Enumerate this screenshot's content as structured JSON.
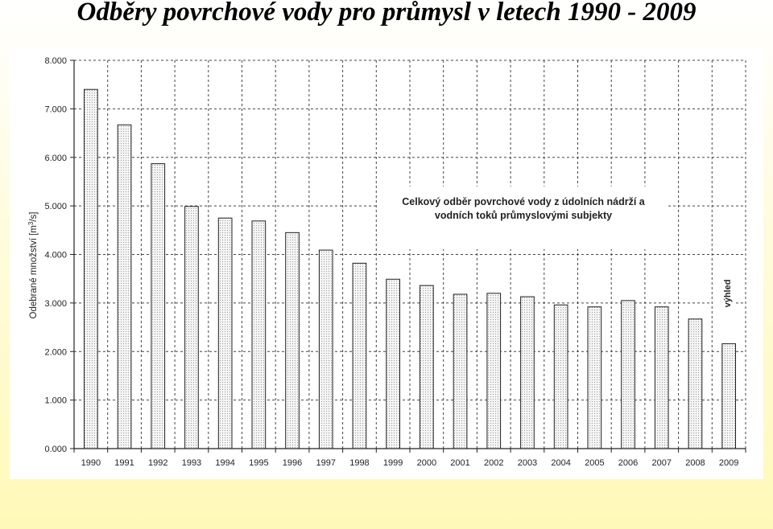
{
  "page": {
    "title": "Odběry povrchové vody pro průmysl v letech 1990 - 2009"
  },
  "colors": {
    "background_top": "#ffffff",
    "background_bottom": "#fff9b8",
    "bar_fill": "#eaeaea",
    "bar_stroke": "#222222",
    "grid": "#444444"
  },
  "chart_data": {
    "type": "bar",
    "title": "",
    "annotation_lines": [
      "Celkový odběr povrchové vody z údolních nádrží a",
      "vodních toků průmyslovými subjekty"
    ],
    "forecast_label": "výhled",
    "xlabel": "",
    "ylabel_prefix": "Odebrané množství [m",
    "ylabel_sup": "3",
    "ylabel_suffix": "/s]",
    "ylim": [
      0,
      8000
    ],
    "yticks": [
      0,
      1000,
      2000,
      3000,
      4000,
      5000,
      6000,
      7000,
      8000
    ],
    "ytick_labels": [
      "0.000",
      "1.000",
      "2.000",
      "3.000",
      "4.000",
      "5.000",
      "6.000",
      "7.000",
      "8.000"
    ],
    "categories": [
      "1990",
      "1991",
      "1992",
      "1993",
      "1994",
      "1995",
      "1996",
      "1997",
      "1998",
      "1999",
      "2000",
      "2001",
      "2002",
      "2003",
      "2004",
      "2005",
      "2006",
      "2007",
      "2008",
      "2009"
    ],
    "values": [
      7400,
      6670,
      5870,
      4990,
      4750,
      4690,
      4450,
      4090,
      3820,
      3490,
      3360,
      3180,
      3200,
      3130,
      2960,
      2920,
      3050,
      2920,
      2670,
      2160
    ],
    "grid": true,
    "legend": "none"
  }
}
